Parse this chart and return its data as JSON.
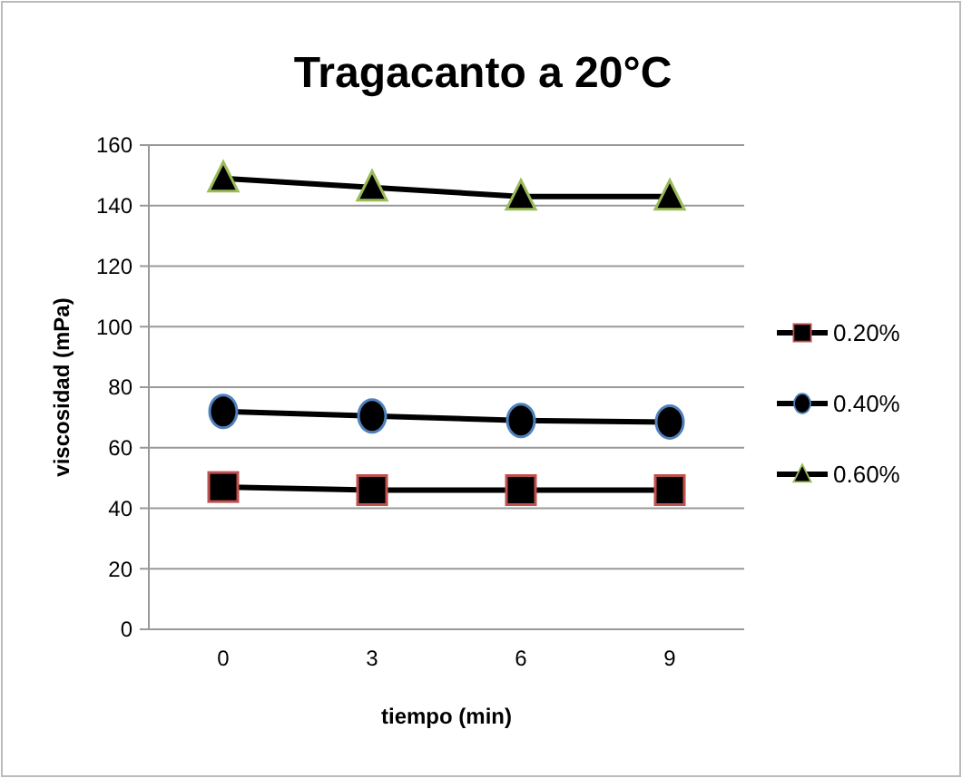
{
  "chart_data": {
    "type": "line",
    "title": "Tragacanto a 20°C",
    "xlabel": "tiempo (min)",
    "ylabel": "viscosidad (mPa)",
    "categories": [
      "0",
      "3",
      "6",
      "9"
    ],
    "ylim": [
      0,
      160
    ],
    "yticks": [
      0,
      20,
      40,
      60,
      80,
      100,
      120,
      140,
      160
    ],
    "grid": "y",
    "legend": "right",
    "series": [
      {
        "name": "0.20%",
        "color": "#000000",
        "marker": "square",
        "values": [
          47,
          46,
          46,
          46
        ]
      },
      {
        "name": "0.40%",
        "color": "#000000",
        "marker": "circle",
        "values": [
          72,
          70.5,
          69,
          68.5
        ]
      },
      {
        "name": "0.60%",
        "color": "#000000",
        "marker": "triangle",
        "values": [
          149,
          146,
          143,
          143
        ]
      }
    ]
  }
}
